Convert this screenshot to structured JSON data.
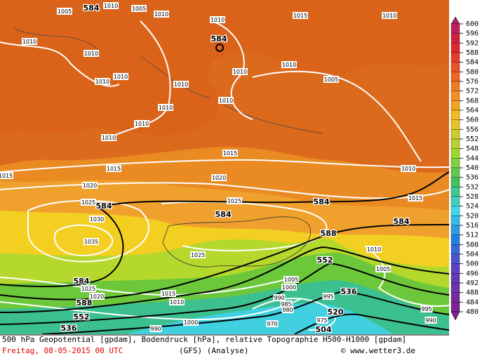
{
  "isobar_labels": [
    "1005",
    "1010",
    "1010",
    "1005",
    "1010",
    "1010",
    "1015",
    "1010",
    "1010",
    "1010",
    "1010",
    "1010",
    "1010",
    "1005",
    "1010",
    "1010",
    "1010",
    "1010",
    "1010",
    "1015",
    "1015",
    "1020",
    "1020",
    "1010",
    "1025",
    "1025",
    "1015",
    "1030",
    "1035",
    "1025",
    "1010",
    "1005",
    "1025",
    "1020",
    "1015",
    "1010",
    "1005",
    "1000",
    "1000",
    "990",
    "990",
    "985",
    "980",
    "995",
    "970",
    "975",
    "995",
    "990",
    "1015"
  ],
  "geopotential_labels": [
    "584",
    "584",
    "584",
    "584",
    "584",
    "584",
    "588",
    "584",
    "588",
    "552",
    "536",
    "520",
    "552",
    "536",
    "504"
  ],
  "colorbar": {
    "labels": [
      600,
      596,
      592,
      588,
      584,
      580,
      576,
      572,
      568,
      564,
      560,
      556,
      552,
      548,
      544,
      540,
      536,
      532,
      528,
      524,
      520,
      516,
      512,
      508,
      504,
      500,
      496,
      492,
      488,
      484,
      480
    ]
  },
  "footer": {
    "description": "500 hPa Geopotential [gpdam], Bodendruck [hPa], relative Topographie H500-H1000 [gpdam]",
    "date": "Freitag, 08-05-2015  00 UTC",
    "model": "(GFS)  (Analyse)",
    "credit": "© www.wetter3.de"
  }
}
